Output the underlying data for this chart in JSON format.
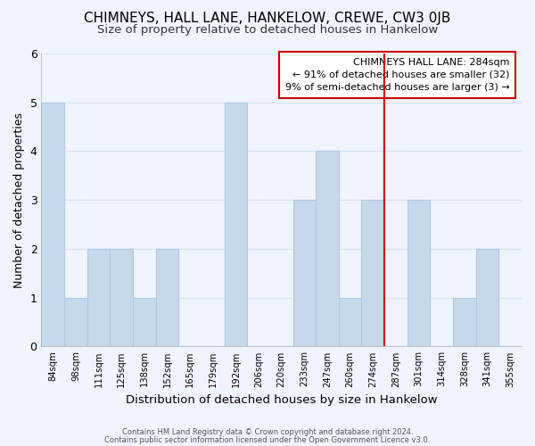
{
  "title": "CHIMNEYS, HALL LANE, HANKELOW, CREWE, CW3 0JB",
  "subtitle": "Size of property relative to detached houses in Hankelow",
  "xlabel": "Distribution of detached houses by size in Hankelow",
  "ylabel": "Number of detached properties",
  "bar_labels": [
    "84sqm",
    "98sqm",
    "111sqm",
    "125sqm",
    "138sqm",
    "152sqm",
    "165sqm",
    "179sqm",
    "192sqm",
    "206sqm",
    "220sqm",
    "233sqm",
    "247sqm",
    "260sqm",
    "274sqm",
    "287sqm",
    "301sqm",
    "314sqm",
    "328sqm",
    "341sqm",
    "355sqm"
  ],
  "bar_values": [
    5,
    1,
    2,
    2,
    1,
    2,
    0,
    0,
    5,
    0,
    0,
    3,
    4,
    1,
    3,
    0,
    3,
    0,
    1,
    2,
    0
  ],
  "bar_color": "#c8d8eb",
  "bar_edge_color": "#aec8e0",
  "background_color": "#f0f4ff",
  "grid_color": "#d8e4f0",
  "vline_color": "#cc0000",
  "vline_index": 15,
  "annotation_title": "CHIMNEYS HALL LANE: 284sqm",
  "annotation_line1": "← 91% of detached houses are smaller (32)",
  "annotation_line2": "9% of semi-detached houses are larger (3) →",
  "annotation_box_color": "#ffffff",
  "annotation_box_edge": "#cc0000",
  "footer1": "Contains HM Land Registry data © Crown copyright and database right 2024.",
  "footer2": "Contains public sector information licensed under the Open Government Licence v3.0.",
  "ylim": [
    0,
    6
  ],
  "title_fontsize": 11,
  "subtitle_fontsize": 9.5,
  "ylabel_fontsize": 9,
  "xlabel_fontsize": 9.5
}
